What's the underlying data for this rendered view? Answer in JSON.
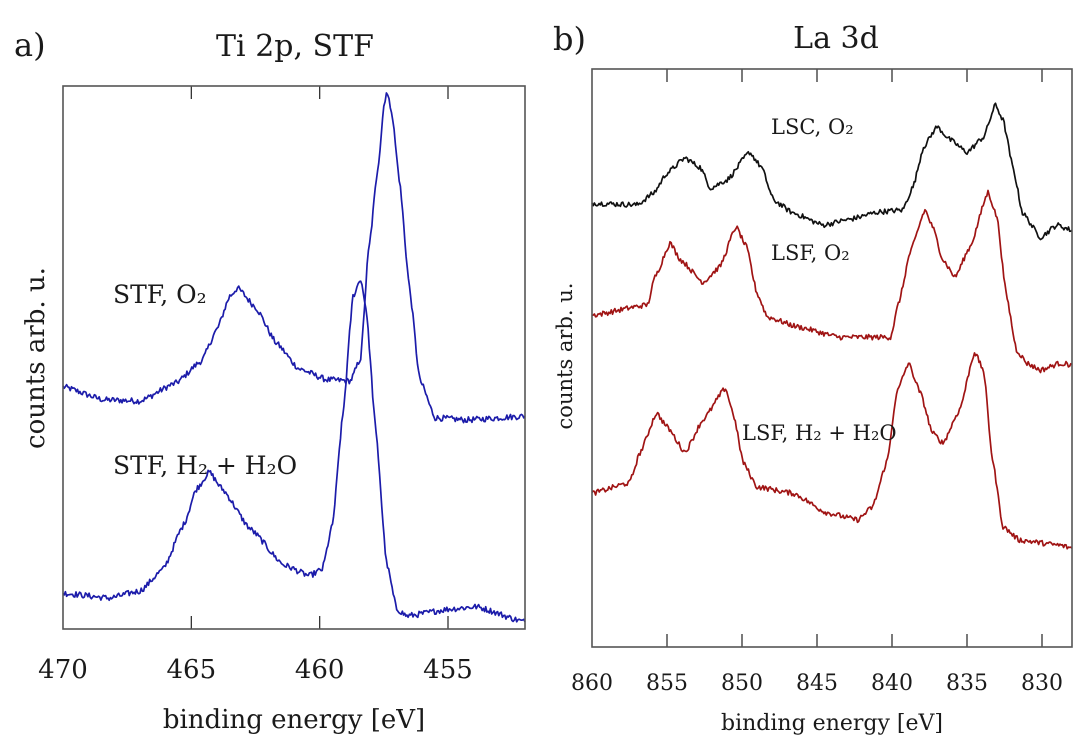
{
  "chart_data": [
    {
      "type": "line",
      "panel_label": "a)",
      "title": "Ti 2p, STF",
      "xlabel": "binding energy [eV]",
      "ylabel": "counts arb. u.",
      "xlim": [
        470,
        452
      ],
      "x_reversed": true,
      "ylim": [
        0,
        100
      ],
      "y_ticks_shown": false,
      "grid": false,
      "x_ticks": [
        470,
        465,
        460,
        455
      ],
      "x_tick_labels": [
        "470",
        "465",
        "460",
        "455"
      ],
      "annotations": [
        {
          "text": "STF, O₂"
        },
        {
          "text": "STF, H₂ + H₂O"
        }
      ],
      "series": [
        {
          "name": "STF, O₂",
          "color": "#1c1caa",
          "x": [
            470,
            468.4,
            467.0,
            465.6,
            464.6,
            464.0,
            463.5,
            463.2,
            462.5,
            461.7,
            460.8,
            459.7,
            458.8,
            458.4,
            458.1,
            457.7,
            457.5,
            457.4,
            457.2,
            456.9,
            456.5,
            456.1,
            455.5,
            454.3,
            452.0
          ],
          "y": [
            44.6,
            42.2,
            42.0,
            45.3,
            49.4,
            55.2,
            61.3,
            62.8,
            59.3,
            52.7,
            47.9,
            45.9,
            45.7,
            49.9,
            69.4,
            86.2,
            96.3,
            98.9,
            95.6,
            82.9,
            62.8,
            45.9,
            38.9,
            38.5,
            39.2
          ]
        },
        {
          "name": "STF, H₂ + H₂O",
          "color": "#1c1caa",
          "x": [
            470,
            468.2,
            467.0,
            466.1,
            465.3,
            464.8,
            464.3,
            463.8,
            462.7,
            461.4,
            460.4,
            459.9,
            459.5,
            459.1,
            458.7,
            458.4,
            458.2,
            457.8,
            457.4,
            457.0,
            456.6,
            454.9,
            453.9,
            452.0
          ],
          "y": [
            6.6,
            5.7,
            7.0,
            11.0,
            19.2,
            25.8,
            28.9,
            25.8,
            18.4,
            11.8,
            9.8,
            11.0,
            19.2,
            39.2,
            61.3,
            64.5,
            59.3,
            35.9,
            12.3,
            3.7,
            2.4,
            3.7,
            4.1,
            1.3
          ]
        }
      ]
    },
    {
      "type": "line",
      "panel_label": "b)",
      "title": "La 3d",
      "xlabel": "binding energy [eV]",
      "ylabel": "counts arb. u.",
      "xlim": [
        860,
        828
      ],
      "x_reversed": true,
      "ylim": [
        0,
        100
      ],
      "y_ticks_shown": false,
      "grid": false,
      "x_ticks": [
        860,
        855,
        850,
        845,
        840,
        835,
        830
      ],
      "x_tick_labels": [
        "860",
        "855",
        "850",
        "845",
        "840",
        "835",
        "830"
      ],
      "annotations": [
        {
          "text": "LSC, O₂"
        },
        {
          "text": "LSF, O₂"
        },
        {
          "text": "LSF, H₂ + H₂O"
        }
      ],
      "series": [
        {
          "name": "LSC, O₂",
          "color": "#111111",
          "x": [
            860,
            857.0,
            855.9,
            855.0,
            853.8,
            852.8,
            852.1,
            851.0,
            849.5,
            848.7,
            847.9,
            846.6,
            844.6,
            843.0,
            840.8,
            839.3,
            838.6,
            837.9,
            837.0,
            836.1,
            835.0,
            833.9,
            833.1,
            832.6,
            831.9,
            831.3,
            830.1,
            829.0,
            828.0
          ],
          "y": [
            76.8,
            76.5,
            78.5,
            82.0,
            84.6,
            83.0,
            79.4,
            80.8,
            85.6,
            83.0,
            77.3,
            75.1,
            73.0,
            73.9,
            75.3,
            75.6,
            79.6,
            86.5,
            90.0,
            87.7,
            85.6,
            88.2,
            93.8,
            91.2,
            82.5,
            75.1,
            70.9,
            73.0,
            72.1
          ]
        },
        {
          "name": "LSF, O₂",
          "color": "#a01414",
          "x": [
            860,
            856.3,
            855.8,
            854.8,
            854.1,
            852.6,
            851.5,
            850.4,
            849.7,
            849.0,
            848.3,
            846.3,
            843.5,
            840.1,
            839.5,
            838.8,
            837.8,
            837.3,
            836.6,
            835.8,
            834.8,
            833.6,
            833.0,
            832.4,
            831.7,
            831.0,
            830.1,
            828.8,
            828.0
          ],
          "y": [
            57.4,
            59.2,
            64.0,
            69.9,
            67.0,
            63.1,
            65.7,
            72.7,
            69.2,
            61.2,
            57.1,
            55.4,
            53.6,
            53.6,
            60.0,
            68.2,
            75.6,
            72.7,
            67.0,
            64.0,
            69.2,
            78.7,
            74.4,
            61.2,
            51.4,
            49.1,
            47.9,
            49.1,
            48.8
          ]
        },
        {
          "name": "LSF, H₂ + H₂O",
          "color": "#a01414",
          "x": [
            860,
            857.5,
            856.8,
            855.7,
            855.0,
            853.8,
            852.6,
            851.1,
            850.6,
            849.9,
            849.0,
            846.6,
            844.3,
            842.3,
            841.3,
            840.3,
            839.7,
            838.9,
            838.1,
            837.3,
            836.6,
            835.5,
            834.5,
            833.9,
            833.3,
            832.6,
            831.5,
            828.8,
            828.0
          ],
          "y": [
            26.6,
            28.4,
            33.6,
            40.5,
            38.1,
            33.7,
            39.3,
            44.8,
            40.5,
            31.8,
            27.7,
            26.6,
            23.2,
            22.0,
            24.2,
            32.4,
            43.9,
            49.1,
            43.9,
            37.0,
            35.3,
            41.0,
            51.0,
            47.9,
            32.4,
            20.8,
            18.5,
            17.6,
            17.1
          ]
        }
      ]
    }
  ]
}
